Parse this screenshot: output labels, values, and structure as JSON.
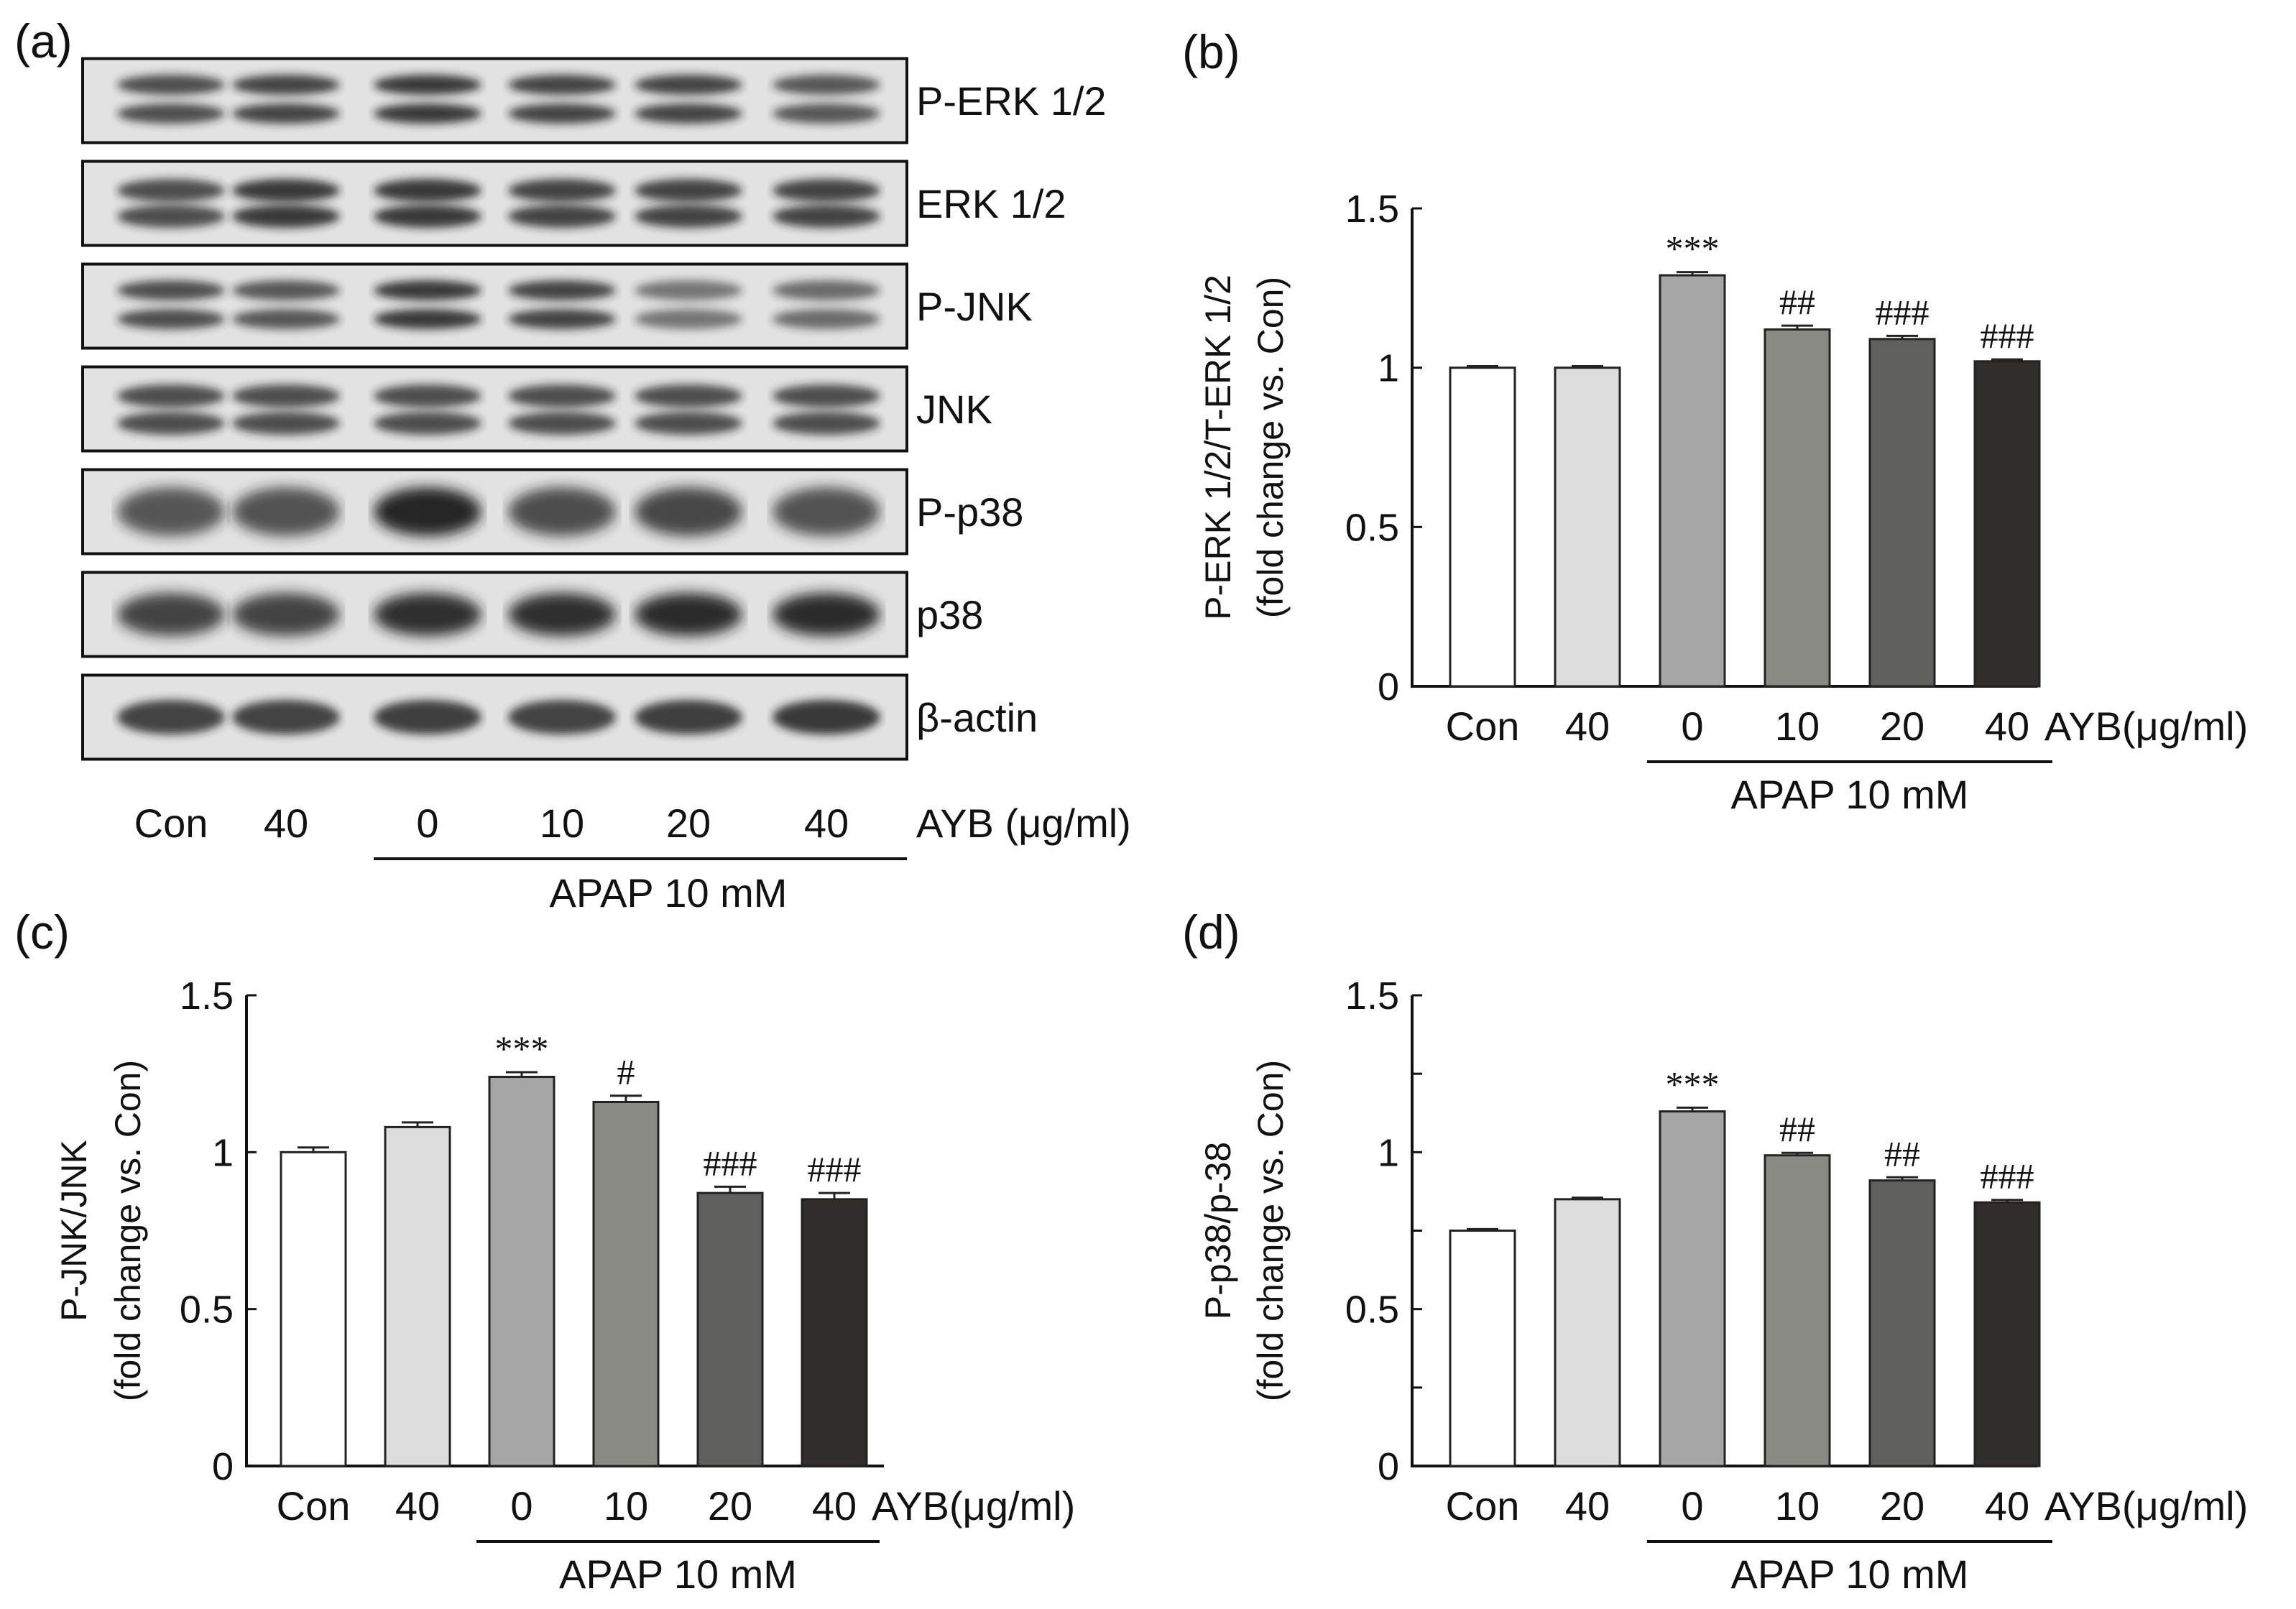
{
  "panel_labels": [
    "(a)",
    "(b)",
    "(c)",
    "(d)"
  ],
  "western_blot": {
    "proteins": [
      "P-ERK 1/2",
      "ERK 1/2",
      "P-JNK",
      "JNK",
      "P-p38",
      "p38",
      "β-actin"
    ],
    "lanes": [
      "Con",
      "40",
      "0",
      "10",
      "20",
      "40"
    ],
    "unit_label": "AYB (μg/ml)",
    "group_label": "APAP 10 mM"
  },
  "chart_data": [
    {
      "type": "bar",
      "panel": "(b)",
      "categories": [
        "Con",
        "40",
        "0",
        "10",
        "20",
        "40"
      ],
      "category_suffix": "AYB(μg/ml)",
      "group_label": "APAP 10 mM",
      "values": [
        1.0,
        1.0,
        1.29,
        1.12,
        1.09,
        1.02
      ],
      "errors": [
        0.005,
        0.005,
        0.01,
        0.012,
        0.01,
        0.006
      ],
      "significance": [
        "",
        "",
        "***",
        "##",
        "###",
        "###"
      ],
      "bar_colors": [
        "#ffffff",
        "#dcdcdc",
        "#a6a6a6",
        "#8a8a84",
        "#5f605c",
        "#302d2b"
      ],
      "ylabel_line1": "P-ERK 1/2/T-ERK 1/2",
      "ylabel_line2": "(fold change vs.  Con)",
      "ylim": [
        0,
        1.5
      ],
      "yticks": [
        0,
        0.5,
        1,
        1.5
      ],
      "ytick_labels": [
        "0",
        "0.5",
        "1",
        "1.5"
      ]
    },
    {
      "type": "bar",
      "panel": "(c)",
      "categories": [
        "Con",
        "40",
        "0",
        "10",
        "20",
        "40"
      ],
      "category_suffix": "AYB(μg/ml)",
      "group_label": "APAP 10 mM",
      "values": [
        1.0,
        1.08,
        1.24,
        1.16,
        0.87,
        0.85
      ],
      "errors": [
        0.015,
        0.015,
        0.015,
        0.02,
        0.02,
        0.02
      ],
      "significance": [
        "",
        "",
        "***",
        "#",
        "###",
        "###"
      ],
      "bar_colors": [
        "#ffffff",
        "#dcdcdc",
        "#a6a6a6",
        "#8a8a84",
        "#5f605c",
        "#302d2b"
      ],
      "ylabel_line1": "P-JNK/JNK",
      "ylabel_line2": "(fold change vs.  Con)",
      "ylim": [
        0,
        1.5
      ],
      "yticks": [
        0,
        0.5,
        1,
        1.5
      ],
      "ytick_labels": [
        "0",
        "0.5",
        "1",
        "1.5"
      ]
    },
    {
      "type": "bar",
      "panel": "(d)",
      "categories": [
        "Con",
        "40",
        "0",
        "10",
        "20",
        "40"
      ],
      "category_suffix": "AYB(μg/ml)",
      "group_label": "APAP 10 mM",
      "values": [
        0.75,
        0.85,
        1.13,
        0.99,
        0.91,
        0.84
      ],
      "errors": [
        0.005,
        0.005,
        0.012,
        0.008,
        0.01,
        0.008
      ],
      "significance": [
        "",
        "",
        "***",
        "##",
        "##",
        "###"
      ],
      "bar_colors": [
        "#ffffff",
        "#dcdcdc",
        "#a6a6a6",
        "#8a8a84",
        "#5f605c",
        "#302d2b"
      ],
      "ylabel_line1": "P-p38/p-38",
      "ylabel_line2": "(fold change vs.  Con)",
      "ylim": [
        0,
        1.5
      ],
      "yticks": [
        0,
        0.25,
        0.5,
        0.75,
        1,
        1.25,
        1.5
      ],
      "ytick_labels": [
        "0",
        "",
        "0.5",
        "",
        "1",
        "",
        "1.5"
      ]
    }
  ]
}
